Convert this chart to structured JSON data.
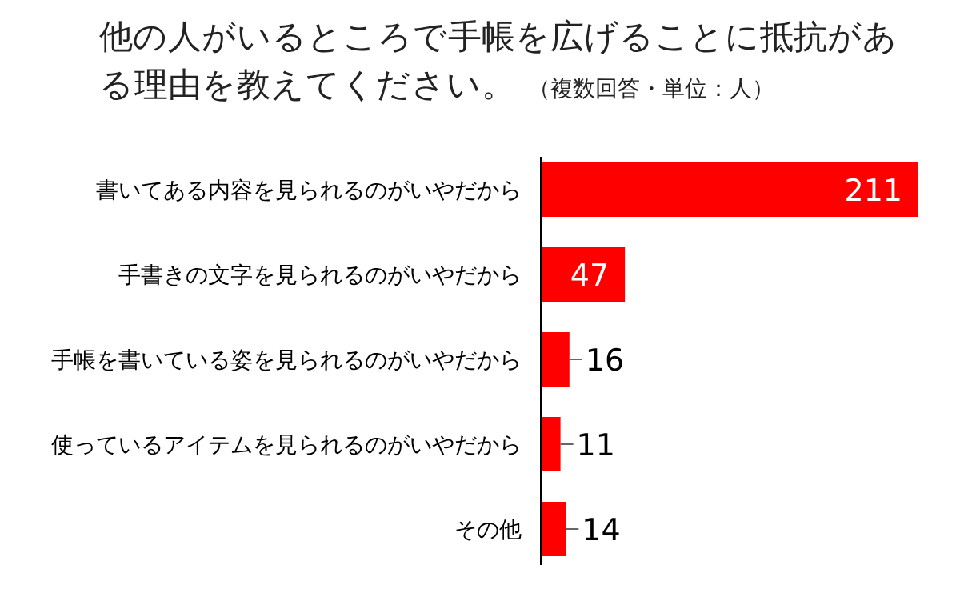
{
  "chart_data": {
    "type": "bar",
    "orientation": "horizontal",
    "title": "他の人がいるところで手帳を広げることに抵抗がある理由を教えてください。",
    "subtitle": "（複数回答・単位：人）",
    "categories": [
      "書いてある内容を見られるのがいやだから",
      "手書きの文字を見られるのがいやだから",
      "手帳を書いている姿を見られるのがいやだから",
      "使っているアイテムを見られるのがいやだから",
      "その他"
    ],
    "values": [
      211,
      47,
      16,
      11,
      14
    ],
    "color": "#ff0000",
    "data_labels": true
  }
}
